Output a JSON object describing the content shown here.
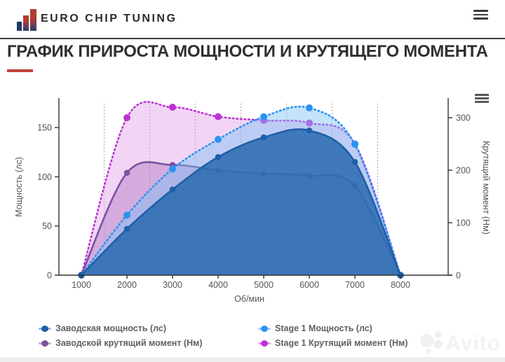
{
  "header": {
    "brand": "EURO CHIP TUNING",
    "logo_colors": {
      "navy": "#203864",
      "red": "#b43b32"
    }
  },
  "page": {
    "title": "ГРАФИК ПРИРОСТА МОЩНОСТИ И КРУТЯЩЕГО МОМЕНТА",
    "accent_color": "#bf4038"
  },
  "watermark": {
    "text": "Avito"
  },
  "chart_data": {
    "type": "area",
    "x": [
      1000,
      2000,
      3000,
      4000,
      5000,
      6000,
      7000,
      8000
    ],
    "x_tick_labels": [
      "1000",
      "2000",
      "3000",
      "4000",
      "5000",
      "6000",
      "7000",
      "8000"
    ],
    "xlabel": "Об/мин",
    "grid_x": [
      1500,
      2500,
      3500,
      4500,
      5500,
      6500,
      7500
    ],
    "grid_style": "vertical-dotted",
    "legend_position": "bottom",
    "y_left": {
      "label": "Мощность (лс)",
      "ticks": [
        0,
        50,
        100,
        150
      ],
      "max": 180
    },
    "y_right": {
      "label": "Крутящий момент (Нм)",
      "ticks": [
        0,
        100,
        200,
        300
      ],
      "max": 337.5
    },
    "series": [
      {
        "id": "factory-power",
        "name": "Заводская мощность (лс)",
        "axis": "power",
        "line": "solid",
        "color": "#1e5fa8",
        "fill": "rgba(37,102,174,0.82)",
        "values": [
          0,
          47,
          87,
          120,
          140,
          147,
          115,
          0
        ]
      },
      {
        "id": "stage1-power",
        "name": "Stage 1 Мощность (лс)",
        "axis": "power",
        "line": "dotted",
        "color": "#2b93f0",
        "fill": "rgba(125,193,246,0.45)",
        "values": [
          0,
          61,
          108,
          138,
          161,
          170,
          133,
          0
        ]
      },
      {
        "id": "factory-torque",
        "name": "Заводской крутящий момент (Нм)",
        "axis": "torque",
        "line": "solid",
        "color": "#7b52a0",
        "fill": "rgba(172,122,193,0.45)",
        "values": [
          0,
          195,
          210,
          200,
          193,
          190,
          170,
          0
        ]
      },
      {
        "id": "stage1-torque",
        "name": "Stage 1 Крутящий момент (Нм)",
        "axis": "torque",
        "line": "dotted",
        "color": "#bd32d4",
        "fill": "rgba(224,156,231,0.42)",
        "values": [
          0,
          300,
          320,
          302,
          295,
          290,
          250,
          0
        ]
      }
    ]
  }
}
